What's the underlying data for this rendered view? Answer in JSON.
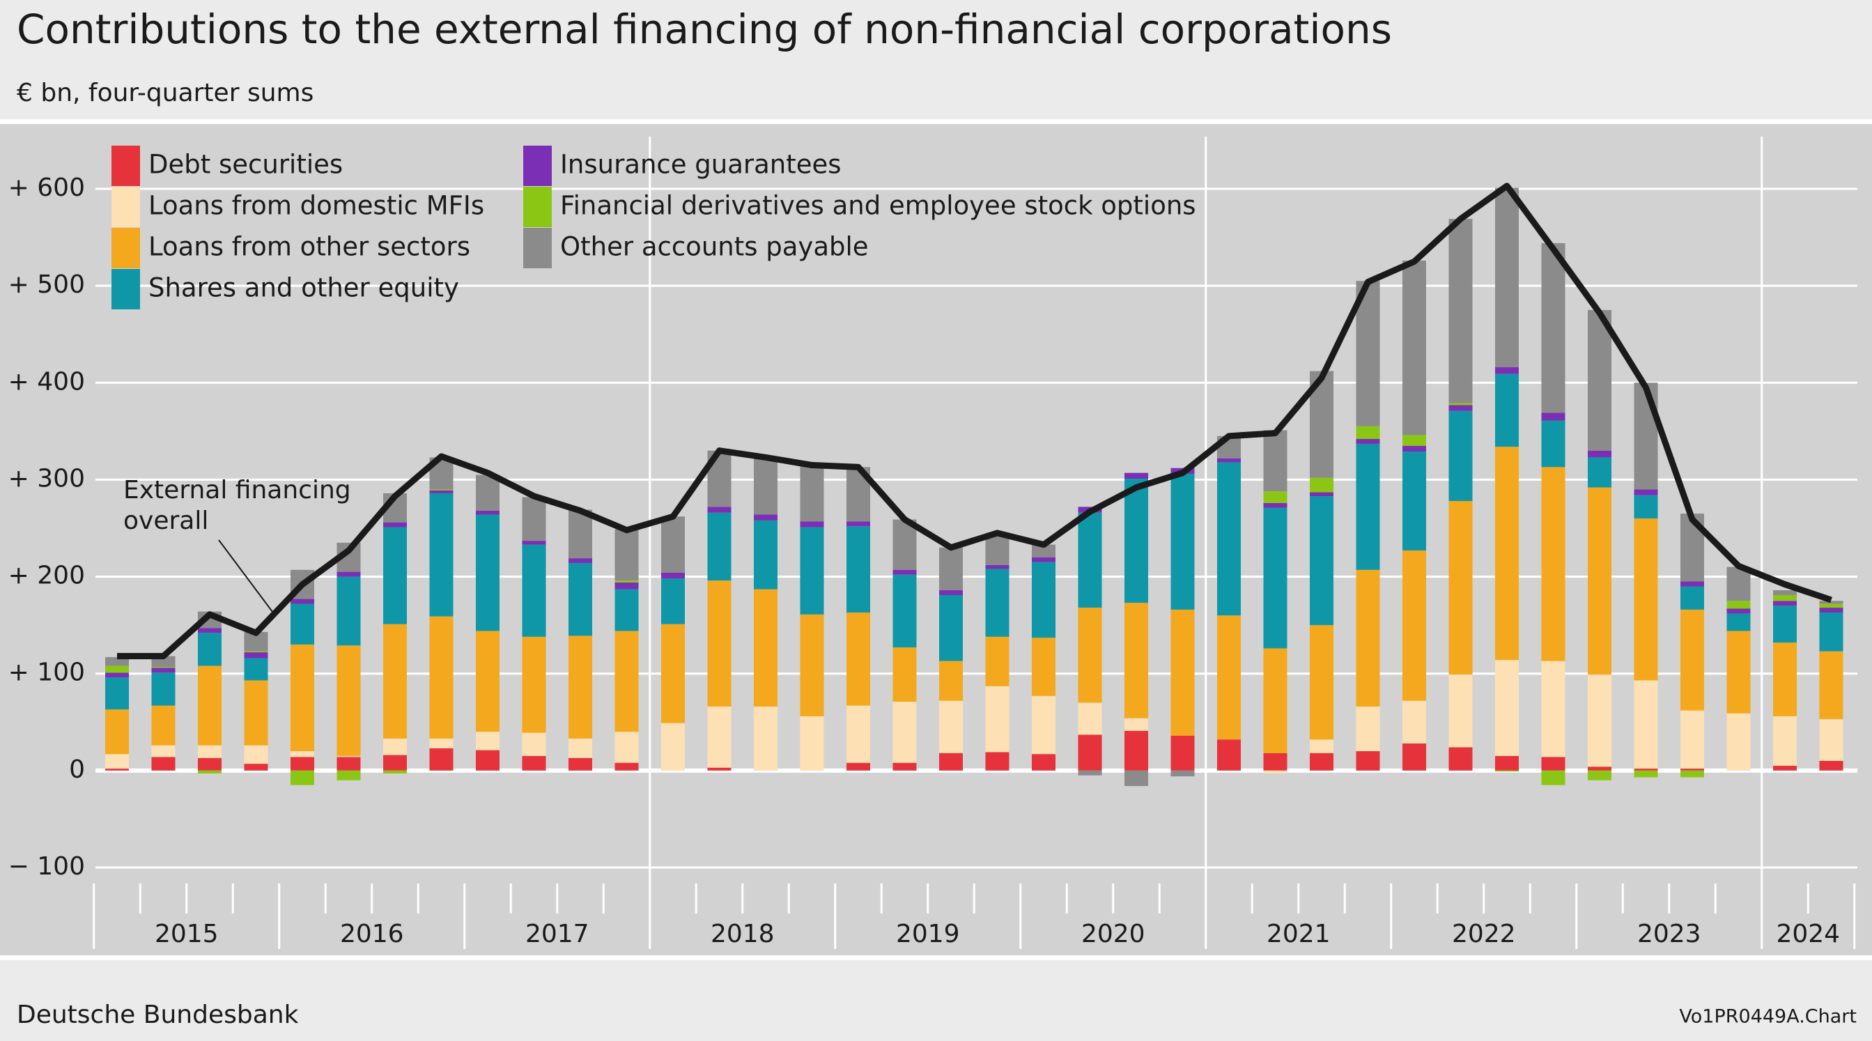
{
  "chart_data": {
    "type": "bar",
    "stacked": true,
    "title": "Contributions to the external financing of non-financial corporations",
    "subtitle": "€ bn, four-quarter sums",
    "source": "Deutsche Bundesbank",
    "chart_id": "Vo1PR0449A.Chart",
    "annotation": [
      "External financing",
      "overall"
    ],
    "xgroups": [
      "2015",
      "2016",
      "2017",
      "2018",
      "2019",
      "2020",
      "2021",
      "2022",
      "2023",
      "2024"
    ],
    "ylim": [
      -100,
      600
    ],
    "yticks": [
      {
        "value": -100,
        "label": "− 100"
      },
      0,
      {
        "value": 100,
        "label": "+ 100"
      },
      {
        "value": 200,
        "label": "+ 200"
      },
      {
        "value": 300,
        "label": "+ 300"
      },
      {
        "value": 400,
        "label": "+ 400"
      },
      {
        "value": 500,
        "label": "+ 500"
      },
      {
        "value": 600,
        "label": "+ 600"
      }
    ],
    "grid": true,
    "series": [
      {
        "name": "Debt securities",
        "color": "#e5323b",
        "values": [
          2,
          14,
          13,
          7,
          14,
          14,
          16,
          23,
          21,
          15,
          13,
          8,
          0,
          3,
          0,
          0,
          8,
          8,
          18,
          19,
          17,
          37,
          41,
          36,
          32,
          18,
          18,
          20,
          28,
          24,
          15,
          14,
          4,
          2,
          2,
          0,
          5,
          10
        ]
      },
      {
        "name": "Loans from domestic MFIs",
        "color": "#fde0b4",
        "values": [
          15,
          12,
          13,
          19,
          6,
          1,
          17,
          10,
          19,
          24,
          20,
          32,
          49,
          63,
          66,
          56,
          59,
          63,
          54,
          68,
          60,
          33,
          13,
          0,
          0,
          -3,
          14,
          46,
          44,
          75,
          99,
          99,
          95,
          91,
          60,
          59,
          51,
          43
        ]
      },
      {
        "name": "Loans from other sectors",
        "color": "#f4a81d",
        "values": [
          46,
          41,
          82,
          67,
          110,
          114,
          118,
          126,
          104,
          99,
          106,
          104,
          102,
          130,
          121,
          105,
          96,
          56,
          41,
          51,
          60,
          98,
          119,
          130,
          128,
          108,
          118,
          141,
          155,
          179,
          220,
          200,
          193,
          167,
          104,
          85,
          76,
          70
        ]
      },
      {
        "name": "Shares and other equity",
        "color": "#0f97a8",
        "values": [
          33,
          34,
          34,
          23,
          42,
          71,
          100,
          127,
          120,
          95,
          75,
          43,
          47,
          70,
          71,
          90,
          89,
          75,
          68,
          70,
          78,
          98,
          128,
          140,
          158,
          145,
          133,
          130,
          102,
          93,
          75,
          48,
          31,
          24,
          24,
          18,
          38,
          40
        ]
      },
      {
        "name": "Insurance guarantees",
        "color": "#7a2fb4",
        "values": [
          5,
          5,
          5,
          6,
          5,
          5,
          5,
          3,
          4,
          4,
          5,
          7,
          6,
          6,
          6,
          6,
          5,
          5,
          5,
          4,
          5,
          6,
          6,
          6,
          4,
          5,
          4,
          5,
          6,
          6,
          7,
          8,
          7,
          6,
          5,
          5,
          5,
          5
        ]
      },
      {
        "name": "Financial derivatives and employee stock options",
        "color": "#8cc614",
        "values": [
          7,
          1,
          -3,
          1,
          -15,
          -10,
          -3,
          1,
          0,
          0,
          0,
          2,
          0,
          0,
          0,
          0,
          0,
          0,
          0,
          0,
          0,
          0,
          0,
          0,
          0,
          12,
          15,
          13,
          11,
          2,
          -1,
          -15,
          -10,
          -7,
          -7,
          8,
          6,
          4
        ]
      },
      {
        "name": "Other accounts payable",
        "color": "#8b8b8b",
        "values": [
          9,
          11,
          17,
          20,
          30,
          30,
          30,
          33,
          37,
          45,
          50,
          53,
          58,
          58,
          59,
          58,
          56,
          52,
          44,
          33,
          13,
          -5,
          -16,
          -6,
          23,
          63,
          110,
          150,
          180,
          190,
          185,
          175,
          145,
          110,
          70,
          35,
          5,
          3
        ]
      }
    ],
    "line": {
      "color": "#1a1a1a",
      "values": [
        118,
        118,
        161,
        142,
        192,
        227,
        283,
        324,
        307,
        283,
        268,
        248,
        262,
        330,
        323,
        315,
        313,
        259,
        230,
        245,
        233,
        267,
        292,
        307,
        345,
        348,
        405,
        504,
        525,
        569,
        603,
        538,
        472,
        395,
        259,
        211,
        192,
        176
      ]
    }
  }
}
